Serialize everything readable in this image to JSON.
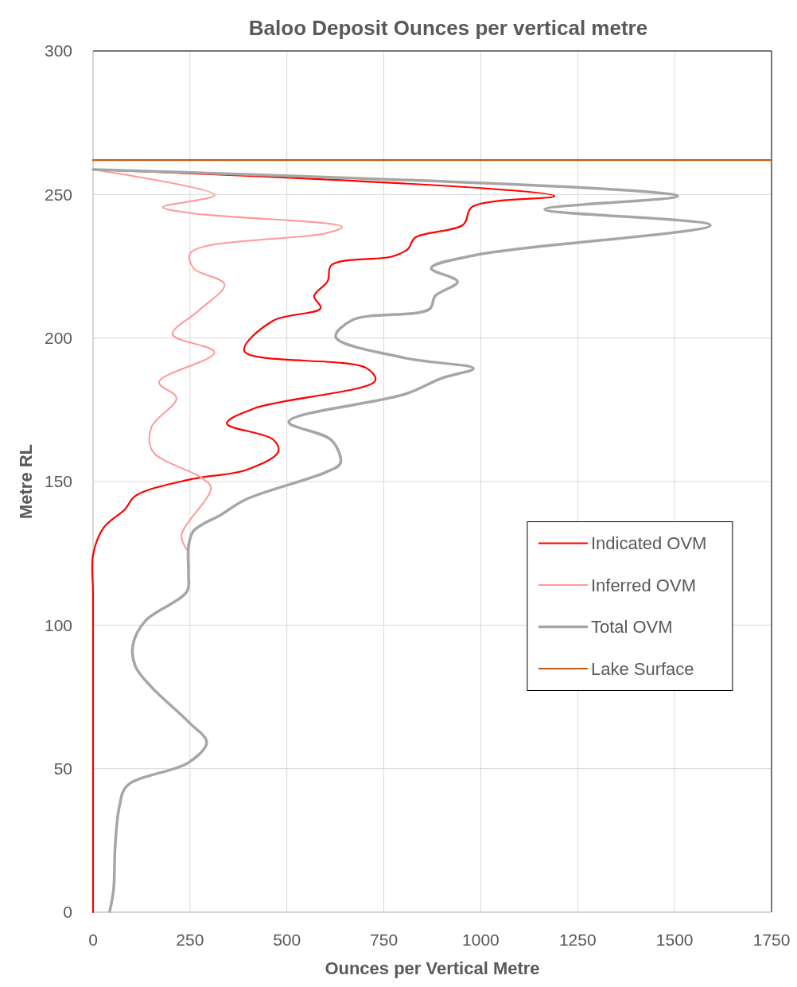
{
  "chart_data": {
    "type": "line",
    "title": "Baloo Deposit Ounces per vertical metre",
    "xlabel": "Ounces per Vertical Metre",
    "ylabel": "Metre RL",
    "xlim": [
      0,
      1750
    ],
    "xticks": [
      0,
      250,
      500,
      750,
      1000,
      1250,
      1500,
      1750
    ],
    "ylim": [
      0,
      300
    ],
    "yticks": [
      0,
      50,
      100,
      150,
      200,
      250,
      300
    ],
    "grid": true,
    "legend": "right",
    "marker": "none",
    "line_style": "solid",
    "series": [
      {
        "name": "Indicated OVM",
        "color": "#ff0000",
        "x": [
          0,
          1190,
          977,
          955,
          831,
          812,
          771,
          615,
          605,
          570,
          587,
          464,
          390,
          704,
          728,
          416,
          345,
          464,
          478,
          396,
          252,
          109,
          82,
          27,
          0,
          0,
          0
        ],
        "values": [
          258.7,
          249.5,
          245.6,
          239.5,
          235,
          231,
          228.4,
          225.4,
          219.8,
          214.6,
          210.4,
          206,
          195.5,
          189.6,
          185.2,
          175.5,
          170.2,
          164.7,
          160.5,
          154.1,
          150.8,
          145,
          140.3,
          133.9,
          124.5,
          110,
          0
        ]
      },
      {
        "name": "Inferred OVM",
        "color": "#ff9999",
        "x": [
          0,
          314,
          180,
          259,
          642,
          601,
          252,
          259,
          339,
          273,
          205,
          313,
          170,
          215,
          150,
          154,
          279,
          304,
          228,
          246
        ],
        "values": [
          258.7,
          249.8,
          245.6,
          243.4,
          238.7,
          236.5,
          229.8,
          224.3,
          218.7,
          209.6,
          201.3,
          195,
          184.6,
          179.1,
          168.8,
          160.5,
          151.4,
          147.8,
          131.1,
          125.6
        ]
      },
      {
        "name": "Total OVM",
        "color": "#a6a6a6",
        "x": [
          0,
          1508,
          1165,
          1592,
          991,
          872,
          940,
          882,
          868,
          669,
          626,
          806,
          981,
          899,
          806,
          505,
          615,
          638,
          601,
          396,
          328,
          259,
          246,
          246,
          242,
          135,
          103,
          109,
          150,
          246,
          293,
          246,
          88,
          68,
          57,
          53,
          43
        ],
        "values": [
          258.7,
          249.5,
          244.8,
          239.3,
          229,
          224.3,
          219.6,
          214.6,
          210.1,
          206.3,
          200.4,
          193,
          189.4,
          186,
          180.5,
          170.8,
          164.4,
          156.4,
          153.3,
          143.9,
          138.3,
          132.8,
          127.3,
          118.1,
          111.7,
          101.5,
          93.2,
          85.7,
          78.5,
          66.3,
          59.1,
          52.1,
          44.1,
          36.9,
          23,
          8,
          0.3
        ]
      },
      {
        "name": "Lake Surface",
        "color": "#c55a11",
        "x": [
          0,
          1750
        ],
        "values": [
          262,
          262
        ]
      }
    ]
  }
}
